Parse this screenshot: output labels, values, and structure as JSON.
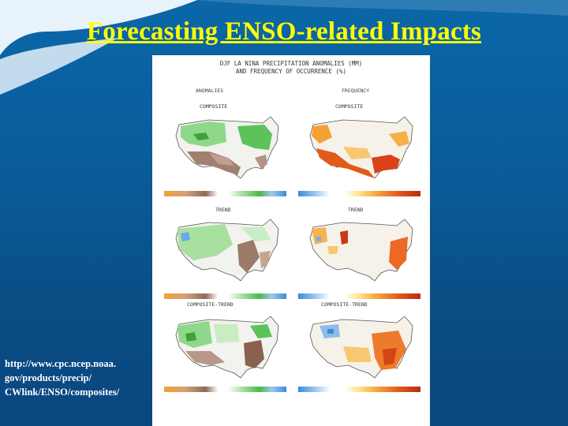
{
  "slide": {
    "title": "Forecasting ENSO-related Impacts",
    "url_lines": [
      "http://www.cpc.ncep.noaa.",
      "gov/products/precip/",
      "CWlink/ENSO/composites/"
    ],
    "title_color": "#ffff00"
  },
  "figure": {
    "header_lines": [
      "DJF LA NINA PRECIPITATION ANOMALIES (MM)",
      "AND FREQUENCY OF OCCURRENCE (%)"
    ],
    "left_column": "ANOMALIES",
    "right_column": "FREQUENCY",
    "rows": [
      {
        "left": "COMPOSITE",
        "right": "COMPOSITE"
      },
      {
        "left": "TREND",
        "right": "TREND"
      },
      {
        "left": "COMPOSITE-TREND",
        "right": "COMPOSITE-TREND"
      }
    ]
  }
}
